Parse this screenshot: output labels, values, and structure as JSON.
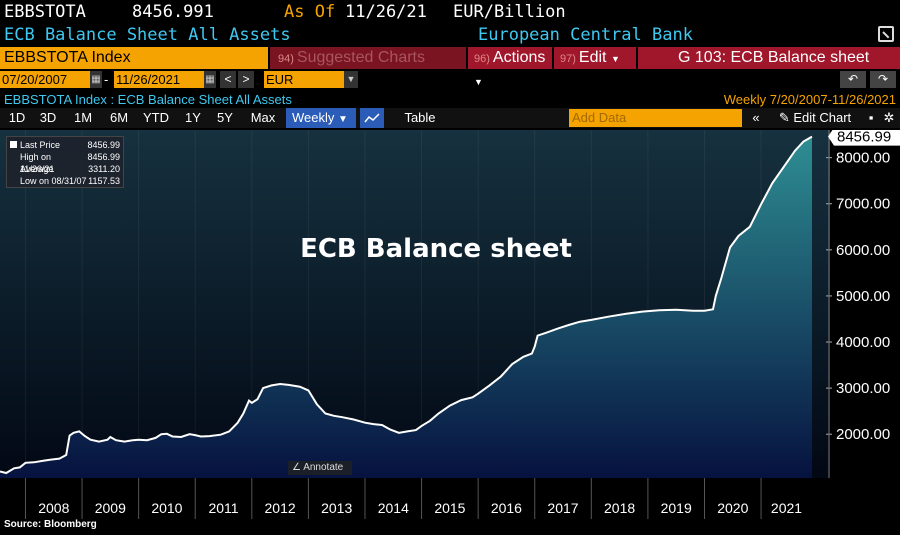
{
  "header": {
    "ticker": "EBBSTOTA",
    "price": "8456.991",
    "as_of_label": "As Of",
    "as_of_date": "11/26/21",
    "units": "EUR/Billion",
    "name": "ECB Balance Sheet All Assets",
    "source": "European Central Bank"
  },
  "toolbar": {
    "index_field": "EBBSTOTA Index",
    "suggested_num": "94)",
    "suggested_label": "Suggested Charts",
    "actions_num": "96)",
    "actions_label": "Actions",
    "edit_num": "97)",
    "edit_label": "Edit",
    "g_label": "G 103: ECB Balance sheet"
  },
  "range": {
    "start": "07/20/2007",
    "end": "11/26/2021",
    "currency": "EUR",
    "prev": "<",
    "next": ">",
    "dash": "-"
  },
  "subtitle": {
    "left": "EBBSTOTA Index : ECB Balance Sheet All Assets",
    "right": "Weekly  7/20/2007-11/26/2021"
  },
  "periods": [
    "1D",
    "3D",
    "1M",
    "6M",
    "YTD",
    "1Y",
    "5Y",
    "Max"
  ],
  "frequency": "Weekly",
  "table_label": "Table",
  "add_data_placeholder": "Add Data",
  "edit_chart_label": "Edit Chart",
  "legend": {
    "rows": [
      {
        "label": "Last Price",
        "value": "8456.99"
      },
      {
        "label": "High on 11/26/21",
        "value": "8456.99"
      },
      {
        "label": "Average",
        "value": "3311.20"
      },
      {
        "label": "Low on 08/31/07",
        "value": "1157.53"
      }
    ]
  },
  "annotate_label": "Annotate",
  "footer_source": "Source: Bloomberg",
  "colors": {
    "line": "#ffffff",
    "area_top": "#2e8e93",
    "area_bottom": "#06123f",
    "bg_top": "#16313f",
    "bg_bottom": "#020814",
    "accent": "#f5a300",
    "cyan": "#3ec8f0"
  },
  "chart_data": {
    "type": "area",
    "title": "ECB Balance sheet",
    "last_value_label": "8456.99",
    "x_start": 2007.55,
    "x_end": 2021.9,
    "xticks": [
      "2008",
      "2009",
      "2010",
      "2011",
      "2012",
      "2013",
      "2014",
      "2015",
      "2016",
      "2017",
      "2018",
      "2019",
      "2020",
      "2021"
    ],
    "yticks": [
      "2000.00",
      "3000.00",
      "4000.00",
      "5000.00",
      "6000.00",
      "7000.00",
      "8000.00"
    ],
    "ylim": [
      1050,
      8600
    ],
    "points": [
      [
        2007.55,
        1190
      ],
      [
        2007.66,
        1157.53
      ],
      [
        2007.8,
        1260
      ],
      [
        2007.9,
        1280
      ],
      [
        2008.0,
        1380
      ],
      [
        2008.15,
        1390
      ],
      [
        2008.3,
        1420
      ],
      [
        2008.45,
        1450
      ],
      [
        2008.6,
        1470
      ],
      [
        2008.72,
        1550
      ],
      [
        2008.78,
        1970
      ],
      [
        2008.85,
        2030
      ],
      [
        2008.95,
        2060
      ],
      [
        2009.05,
        1960
      ],
      [
        2009.15,
        1880
      ],
      [
        2009.3,
        1840
      ],
      [
        2009.45,
        1880
      ],
      [
        2009.5,
        1940
      ],
      [
        2009.6,
        1870
      ],
      [
        2009.75,
        1840
      ],
      [
        2009.9,
        1870
      ],
      [
        2010.0,
        1880
      ],
      [
        2010.15,
        1870
      ],
      [
        2010.3,
        1920
      ],
      [
        2010.4,
        2000
      ],
      [
        2010.5,
        2010
      ],
      [
        2010.6,
        1950
      ],
      [
        2010.75,
        1940
      ],
      [
        2010.9,
        2000
      ],
      [
        2011.0,
        1980
      ],
      [
        2011.1,
        1950
      ],
      [
        2011.25,
        1960
      ],
      [
        2011.45,
        1990
      ],
      [
        2011.6,
        2060
      ],
      [
        2011.75,
        2250
      ],
      [
        2011.85,
        2450
      ],
      [
        2011.95,
        2730
      ],
      [
        2012.0,
        2680
      ],
      [
        2012.1,
        2760
      ],
      [
        2012.2,
        3000
      ],
      [
        2012.35,
        3060
      ],
      [
        2012.5,
        3090
      ],
      [
        2012.65,
        3070
      ],
      [
        2012.85,
        3030
      ],
      [
        2013.0,
        2950
      ],
      [
        2013.15,
        2650
      ],
      [
        2013.3,
        2450
      ],
      [
        2013.45,
        2400
      ],
      [
        2013.6,
        2370
      ],
      [
        2013.8,
        2320
      ],
      [
        2014.0,
        2250
      ],
      [
        2014.15,
        2220
      ],
      [
        2014.3,
        2200
      ],
      [
        2014.45,
        2100
      ],
      [
        2014.6,
        2030
      ],
      [
        2014.75,
        2060
      ],
      [
        2014.9,
        2090
      ],
      [
        2015.0,
        2180
      ],
      [
        2015.15,
        2290
      ],
      [
        2015.3,
        2450
      ],
      [
        2015.5,
        2620
      ],
      [
        2015.7,
        2740
      ],
      [
        2015.9,
        2800
      ],
      [
        2016.0,
        2880
      ],
      [
        2016.2,
        3060
      ],
      [
        2016.4,
        3250
      ],
      [
        2016.6,
        3520
      ],
      [
        2016.8,
        3680
      ],
      [
        2016.95,
        3750
      ],
      [
        2017.0,
        3900
      ],
      [
        2017.05,
        4140
      ],
      [
        2017.2,
        4200
      ],
      [
        2017.4,
        4290
      ],
      [
        2017.6,
        4370
      ],
      [
        2017.8,
        4440
      ],
      [
        2018.0,
        4480
      ],
      [
        2018.3,
        4550
      ],
      [
        2018.6,
        4610
      ],
      [
        2018.9,
        4660
      ],
      [
        2019.2,
        4690
      ],
      [
        2019.5,
        4700
      ],
      [
        2019.8,
        4680
      ],
      [
        2020.0,
        4680
      ],
      [
        2020.15,
        4710
      ],
      [
        2020.2,
        5000
      ],
      [
        2020.3,
        5400
      ],
      [
        2020.45,
        6050
      ],
      [
        2020.6,
        6300
      ],
      [
        2020.8,
        6500
      ],
      [
        2021.0,
        6990
      ],
      [
        2021.2,
        7450
      ],
      [
        2021.4,
        7800
      ],
      [
        2021.6,
        8150
      ],
      [
        2021.75,
        8350
      ],
      [
        2021.9,
        8456.99
      ]
    ]
  }
}
